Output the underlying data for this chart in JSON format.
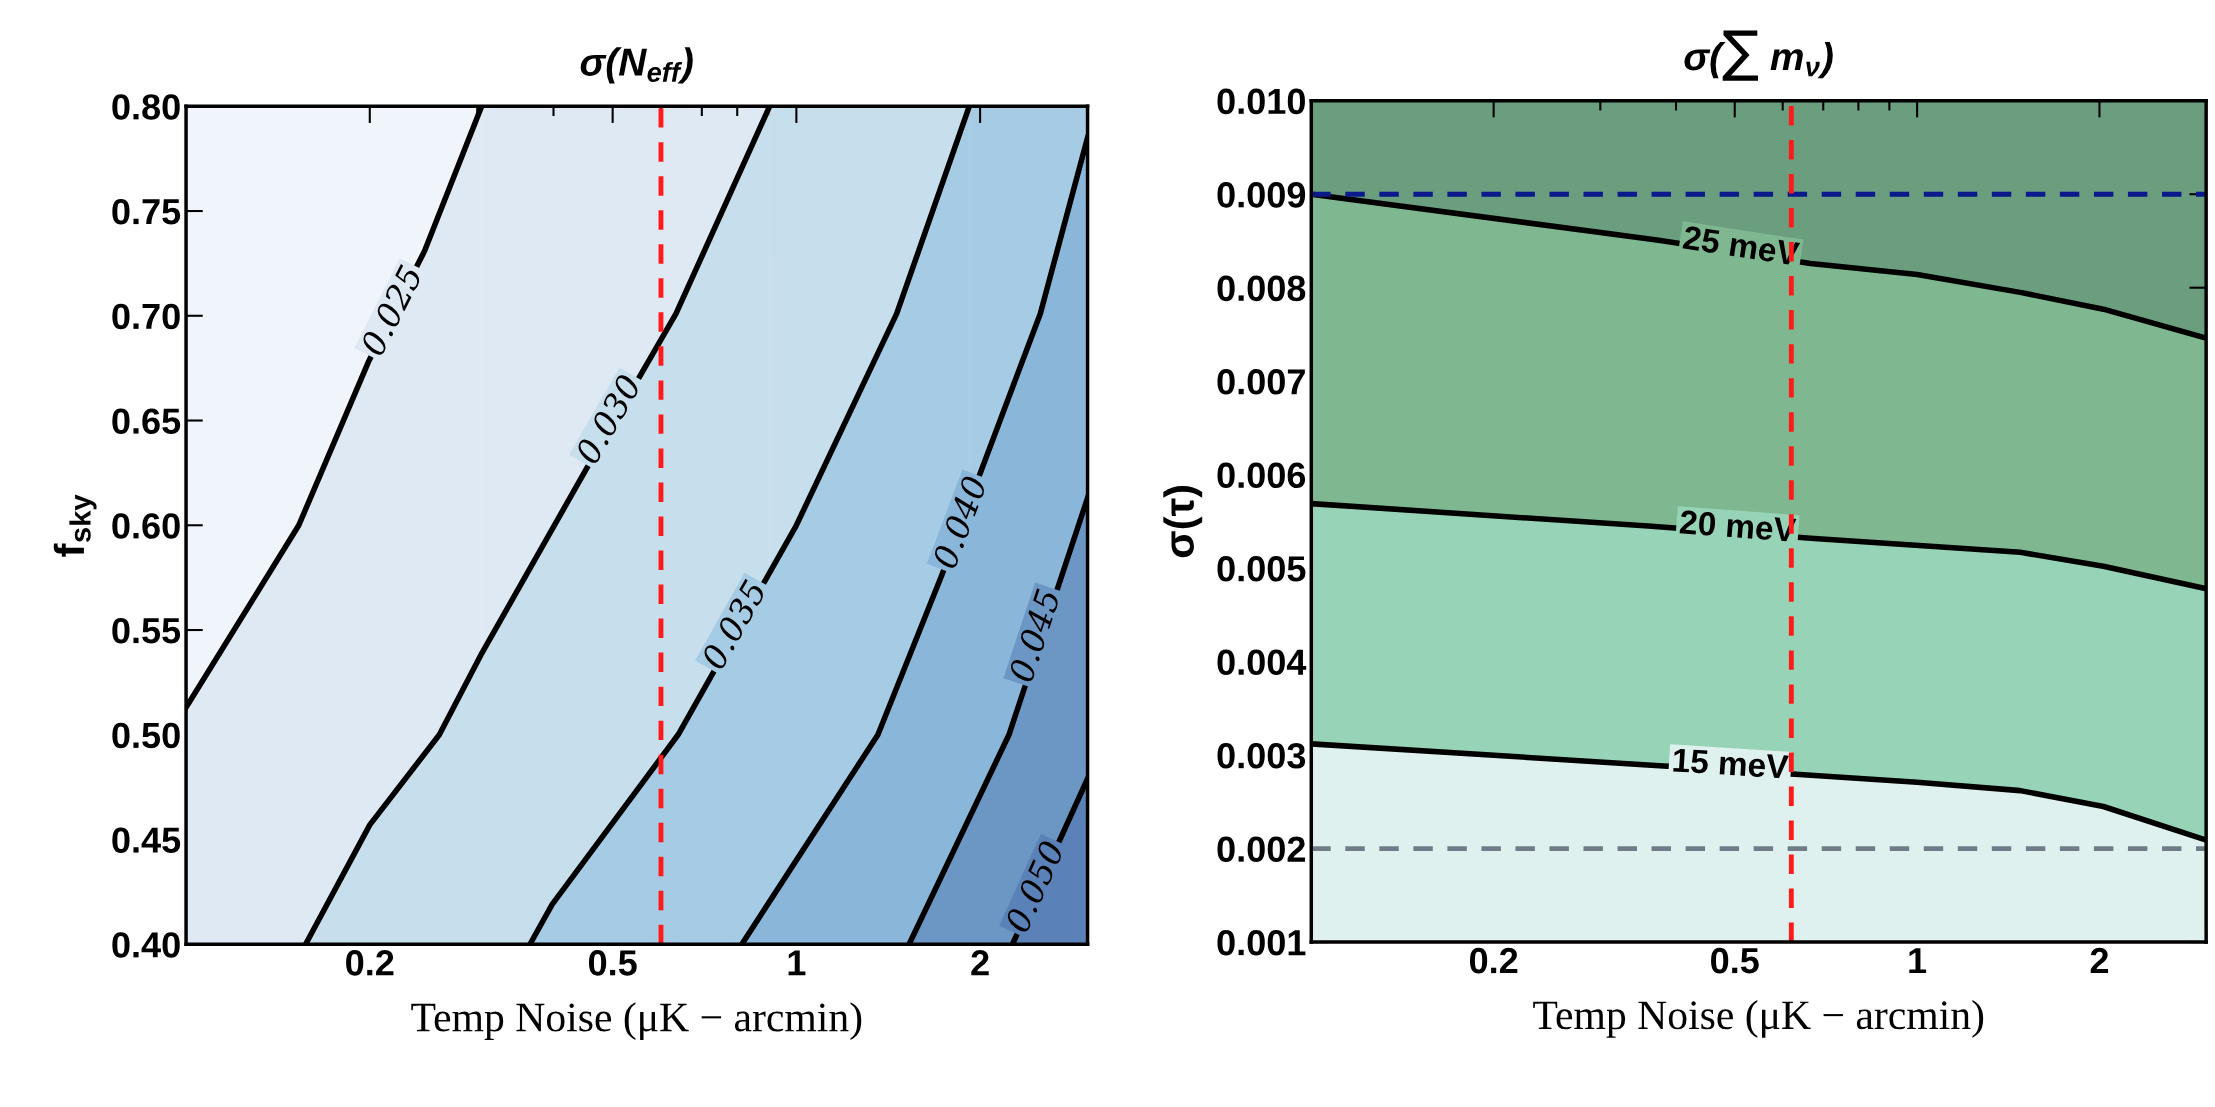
{
  "chart_data": [
    {
      "type": "area",
      "title": "σ(N$_{eff}$)",
      "xlabel": "Temp Noise (μK − arcmin)",
      "ylabel": "f$_{sky}$",
      "log": "x",
      "grid": false,
      "xlim": [
        0.1,
        3
      ],
      "xticks": [
        0.2,
        0.5,
        1,
        2
      ],
      "ylim": [
        0.4,
        0.8
      ],
      "yticks": [
        {
          "value": 0.4,
          "label": "0.40"
        },
        {
          "value": 0.45,
          "label": "0.45"
        },
        {
          "value": 0.5,
          "label": "0.50"
        },
        {
          "value": 0.55,
          "label": "0.55"
        },
        {
          "value": 0.6,
          "label": "0.60"
        },
        {
          "value": 0.65,
          "label": "0.65"
        },
        {
          "value": 0.7,
          "label": "0.70"
        },
        {
          "value": 0.75,
          "label": "0.75"
        },
        {
          "value": 0.8,
          "label": "0.80"
        }
      ],
      "bands": [
        {
          "axis": "y",
          "from": 0.4,
          "to": 0.8,
          "color": "#eff5fa"
        },
        {
          "axis": "x",
          "from": 0.305,
          "to": 3,
          "color": "#dfe9f4"
        },
        {
          "axis": "x",
          "from": 0.904,
          "to": 3,
          "color": "#c7dfed"
        },
        {
          "axis": "x",
          "from": 1.92,
          "to": 3,
          "color": "#a5cce4"
        }
      ],
      "series": [
        {
          "color": "#dfe9f4",
          "x": [
            0.1,
            0.153,
            0.199,
            0.246,
            0.305
          ],
          "values": [
            0.513,
            0.6,
            0.678,
            0.731,
            0.8
          ]
        },
        {
          "color": "#c7dfed",
          "x": [
            0.157,
            0.2,
            0.26,
            0.304,
            0.455,
            0.635,
            0.904
          ],
          "values": [
            0.4,
            0.457,
            0.5,
            0.538,
            0.628,
            0.701,
            0.8
          ]
        },
        {
          "color": "#a5cce4",
          "x": [
            0.366,
            0.398,
            0.64,
            1.0,
            1.46,
            1.92
          ],
          "values": [
            0.4,
            0.419,
            0.5,
            0.6,
            0.701,
            0.8
          ]
        },
        {
          "color": "#89b6d9",
          "x": [
            0.814,
            1.36,
            1.73,
            2.51,
            3.0
          ],
          "values": [
            0.4,
            0.5,
            0.576,
            0.701,
            0.785
          ]
        },
        {
          "color": "#6c96c4",
          "x": [
            1.53,
            2.23,
            3.0
          ],
          "values": [
            0.4,
            0.5,
            0.613
          ]
        },
        {
          "color": "#5b82b8",
          "x": [
            2.26,
            3.0
          ],
          "values": [
            0.4,
            0.479
          ]
        }
      ],
      "annotations": [
        {
          "text": "0.025",
          "x": 0.219,
          "y": 0.702
        },
        {
          "text": "0.030",
          "x": 0.496,
          "y": 0.65
        },
        {
          "text": "0.035",
          "x": 0.797,
          "y": 0.552
        },
        {
          "text": "0.040",
          "x": 1.87,
          "y": 0.601
        },
        {
          "text": "0.045",
          "x": 2.48,
          "y": 0.547
        },
        {
          "text": "0.050",
          "x": 2.48,
          "y": 0.427
        }
      ],
      "ref_lines": [
        {
          "axis": "x",
          "value": 0.6,
          "color": "#ff1a1a",
          "line_style": "dashed"
        }
      ]
    },
    {
      "type": "area",
      "title": "σ(∑ m$_{ν}$)",
      "xlabel": "Temp Noise (μK − arcmin)",
      "ylabel": "σ(τ)",
      "log": "x",
      "grid": false,
      "xlim": [
        0.1,
        3
      ],
      "xticks": [
        0.2,
        0.5,
        1,
        2
      ],
      "ylim": [
        0.001,
        0.01
      ],
      "yticks": [
        {
          "value": 0.001,
          "label": "0.001"
        },
        {
          "value": 0.002,
          "label": "0.002"
        },
        {
          "value": 0.003,
          "label": "0.003"
        },
        {
          "value": 0.004,
          "label": "0.004"
        },
        {
          "value": 0.005,
          "label": "0.005"
        },
        {
          "value": 0.006,
          "label": "0.006"
        },
        {
          "value": 0.007,
          "label": "0.007"
        },
        {
          "value": 0.008,
          "label": "0.008"
        },
        {
          "value": 0.009,
          "label": "0.009"
        },
        {
          "value": 0.01,
          "label": "0.010"
        }
      ],
      "bands": [
        {
          "axis": "y",
          "from": 0.001,
          "to": 0.01,
          "color": "#6b9e7e"
        }
      ],
      "series": [
        {
          "color": "#7fb890",
          "x": [
            0.1,
            0.372,
            0.667,
            1.0,
            1.48,
            2.03,
            3.0
          ],
          "values": [
            0.009,
            0.00851,
            0.00826,
            0.00814,
            0.00795,
            0.00777,
            0.00746
          ]
        },
        {
          "color": "#97d3b6",
          "x": [
            0.1,
            0.36,
            0.667,
            1.48,
            2.03,
            3.0
          ],
          "values": [
            0.00569,
            0.00545,
            0.00532,
            0.00517,
            0.00502,
            0.00478
          ]
        },
        {
          "color": "#dff1ee",
          "x": [
            0.1,
            0.348,
            0.649,
            1.0,
            1.48,
            2.03,
            3.0
          ],
          "values": [
            0.00312,
            0.0029,
            0.00279,
            0.00271,
            0.00262,
            0.00245,
            0.00209
          ]
        }
      ],
      "annotations": [
        {
          "text": "25 meV",
          "x": 0.511,
          "y": 0.00842
        },
        {
          "text": "20 meV",
          "x": 0.505,
          "y": 0.00542
        },
        {
          "text": "15 meV",
          "x": 0.491,
          "y": 0.00288
        }
      ],
      "ref_lines": [
        {
          "axis": "y",
          "value": 0.009,
          "color": "#0a1a8a",
          "line_style": "dashed"
        },
        {
          "axis": "y",
          "value": 0.002,
          "color": "#707c88",
          "line_style": "dashed"
        },
        {
          "axis": "x",
          "value": 0.62,
          "color": "#ff1a1a",
          "line_style": "dashed"
        }
      ]
    }
  ]
}
